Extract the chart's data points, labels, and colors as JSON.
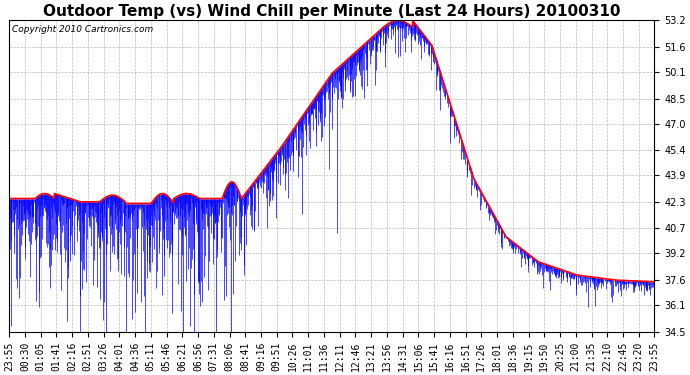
{
  "title": "Outdoor Temp (vs) Wind Chill per Minute (Last 24 Hours) 20100310",
  "copyright": "Copyright 2010 Cartronics.com",
  "yticks": [
    34.5,
    36.1,
    37.6,
    39.2,
    40.7,
    42.3,
    43.9,
    45.4,
    47.0,
    48.5,
    50.1,
    51.6,
    53.2
  ],
  "ymin": 34.5,
  "ymax": 53.2,
  "bar_color": "#0000ff",
  "line_color": "#ff0000",
  "bg_color": "#ffffff",
  "grid_color": "#bbbbbb",
  "title_fontsize": 11,
  "copyright_fontsize": 6.5,
  "tick_fontsize": 7,
  "xtick_labels": [
    "23:55",
    "00:30",
    "01:05",
    "01:41",
    "02:16",
    "02:51",
    "03:26",
    "04:01",
    "04:36",
    "05:11",
    "05:46",
    "06:21",
    "06:56",
    "07:31",
    "08:06",
    "08:41",
    "09:16",
    "09:51",
    "10:26",
    "11:01",
    "11:36",
    "12:11",
    "12:46",
    "13:21",
    "13:56",
    "14:31",
    "15:06",
    "15:41",
    "16:16",
    "16:51",
    "17:26",
    "18:01",
    "18:36",
    "19:15",
    "19:50",
    "20:25",
    "21:00",
    "21:35",
    "22:10",
    "22:45",
    "23:20",
    "23:55"
  ],
  "num_points": 1440
}
